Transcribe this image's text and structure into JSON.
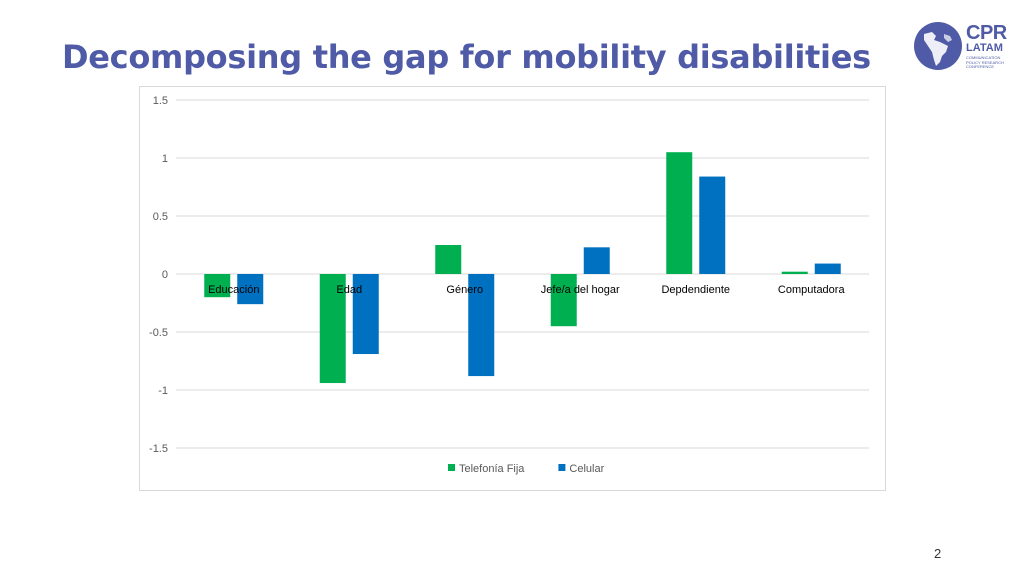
{
  "slide": {
    "title": "Decomposing the gap for mobility disabilities",
    "page_number": "2"
  },
  "logo": {
    "line1": "CPR",
    "line2": "LATAM",
    "line3": "COMMUNICATION POLICY RESEARCH CONFERENCE",
    "color": "#4f5ba6"
  },
  "chart_data": {
    "type": "bar",
    "title": "",
    "xlabel": "",
    "ylabel": "",
    "categories": [
      "Educación",
      "Edad",
      "Género",
      "Jefe/a del hogar",
      "Depdendiente",
      "Computadora"
    ],
    "series": [
      {
        "name": "Telefonía Fija",
        "color": "#00b050",
        "values": [
          -0.2,
          -0.94,
          0.25,
          -0.45,
          1.05,
          0.02
        ]
      },
      {
        "name": "Celular",
        "color": "#0070c0",
        "values": [
          -0.26,
          -0.69,
          -0.88,
          0.23,
          0.84,
          0.09
        ]
      }
    ],
    "ylim": [
      -1.5,
      1.5
    ],
    "yticks": [
      1.5,
      1,
      0.5,
      0,
      -0.5,
      -1,
      -1.5
    ],
    "grid": true,
    "legend_position": "bottom"
  }
}
